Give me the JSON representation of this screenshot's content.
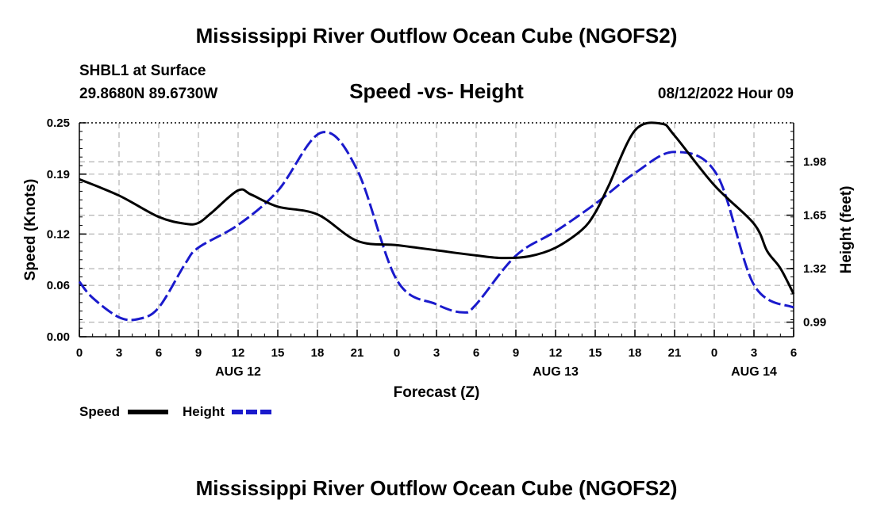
{
  "page": {
    "title": "Mississippi River Outflow Ocean Cube (NGOFS2)",
    "station": "SHBL1 at Surface",
    "coords": "29.8680N  89.6730W",
    "subtitle": "Speed -vs- Height",
    "datetime": "08/12/2022 Hour 09",
    "footer_title": "Mississippi River Outflow Ocean Cube (NGOFS2)"
  },
  "colors": {
    "speed": "#000000",
    "height": "#1a1acc",
    "grid": "#b4b4b4"
  },
  "chart_data": {
    "type": "line",
    "title": "Speed -vs- Height",
    "xlabel": "Forecast (Z)",
    "ylabel": "Speed (Knots)",
    "y2label": "Height (feet)",
    "xlim": [
      0,
      54
    ],
    "ylim": [
      0,
      0.25
    ],
    "y2lim": [
      0.9,
      2.22
    ],
    "x_ticks": [
      0,
      3,
      6,
      9,
      12,
      15,
      18,
      21,
      24,
      27,
      30,
      33,
      36,
      39,
      42,
      45,
      48,
      51,
      54
    ],
    "x_tick_labels": [
      "0",
      "3",
      "6",
      "9",
      "12",
      "15",
      "18",
      "21",
      "0",
      "3",
      "6",
      "9",
      "12",
      "15",
      "18",
      "21",
      "0",
      "3",
      "6"
    ],
    "day_labels": [
      {
        "x": 12,
        "label": "AUG 12"
      },
      {
        "x": 36,
        "label": "AUG 13"
      },
      {
        "x": 51,
        "label": "AUG 14"
      }
    ],
    "y_ticks": [
      0.0,
      0.06,
      0.12,
      0.19,
      0.25
    ],
    "y_tick_labels": [
      "0.00",
      "0.06",
      "0.12",
      "0.19",
      "0.25"
    ],
    "y2_ticks": [
      0.99,
      1.32,
      1.65,
      1.98
    ],
    "y2_tick_labels": [
      "0.99",
      "1.32",
      "1.65",
      "1.98"
    ],
    "grid": true,
    "legend": [
      {
        "name": "Speed",
        "style": "solid"
      },
      {
        "name": "Height",
        "style": "dashed"
      }
    ],
    "series": [
      {
        "name": "Speed",
        "axis": "left",
        "x": [
          0,
          3,
          6,
          8,
          9,
          10,
          12,
          13,
          15,
          18,
          21,
          24,
          27,
          30,
          32,
          34,
          36,
          38,
          39,
          40,
          42,
          44,
          45,
          48,
          51,
          52,
          53,
          54
        ],
        "values": [
          0.184,
          0.165,
          0.14,
          0.132,
          0.133,
          0.145,
          0.171,
          0.166,
          0.152,
          0.143,
          0.112,
          0.107,
          0.101,
          0.095,
          0.092,
          0.094,
          0.104,
          0.125,
          0.145,
          0.176,
          0.241,
          0.249,
          0.235,
          0.177,
          0.132,
          0.1,
          0.08,
          0.05
        ],
        "note": "values roughly read in knots"
      },
      {
        "name": "Height",
        "axis": "right",
        "x": [
          0,
          1,
          3,
          4.5,
          6,
          8,
          9,
          12,
          15,
          18.3,
          21,
          24,
          27,
          29,
          30,
          33,
          36,
          39,
          42,
          45,
          48.2,
          51,
          54
        ],
        "values": [
          1.24,
          1.14,
          1.02,
          1.01,
          1.08,
          1.35,
          1.45,
          1.59,
          1.8,
          2.16,
          1.93,
          1.25,
          1.1,
          1.05,
          1.1,
          1.4,
          1.55,
          1.72,
          1.91,
          2.04,
          1.9,
          1.22,
          1.08
        ],
        "note": "values roughly read in feet"
      }
    ]
  }
}
